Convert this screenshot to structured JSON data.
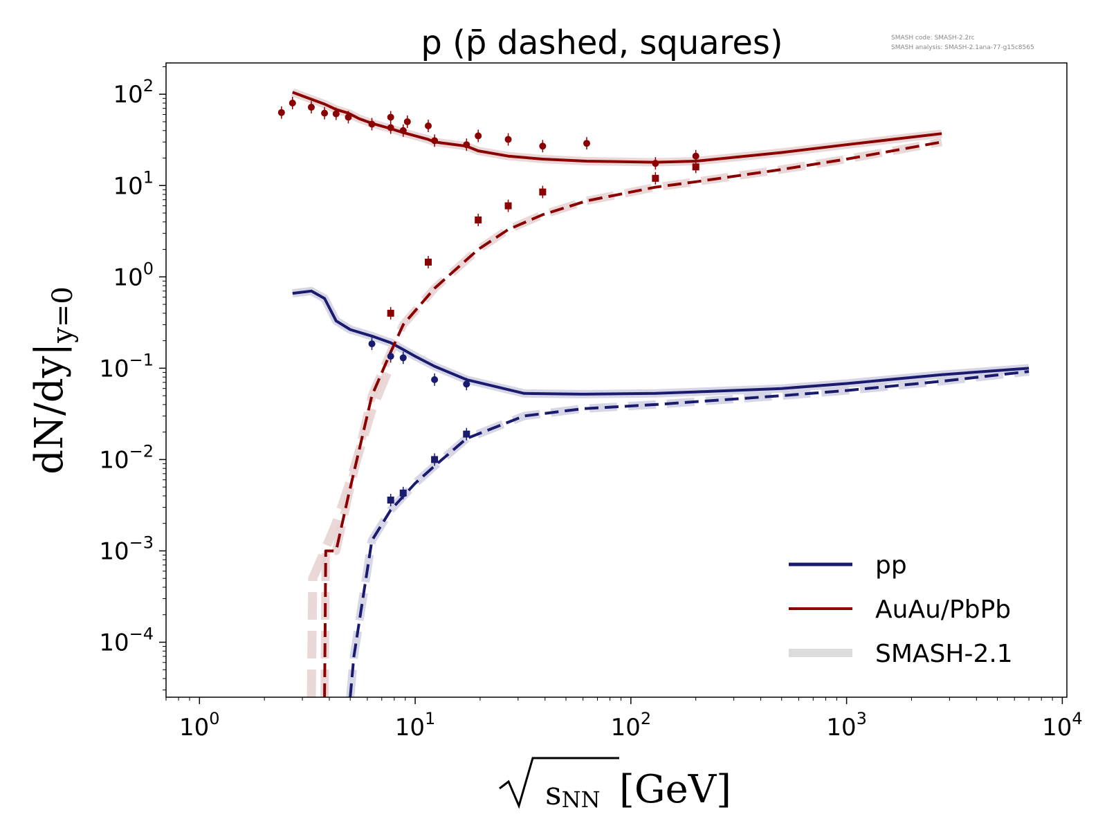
{
  "chart_data": {
    "type": "line",
    "title": "p (p̄ dashed, squares)",
    "xlabel": "√sNN [GeV]",
    "ylabel": "dN/dy|y=0",
    "x_scale": "log",
    "y_scale": "log",
    "xlim": [
      0.7,
      10500
    ],
    "ylim": [
      2.5e-05,
      220
    ],
    "x_ticks": [
      {
        "value": 1,
        "base": "10",
        "exp": "0"
      },
      {
        "value": 10,
        "base": "10",
        "exp": "1"
      },
      {
        "value": 100,
        "base": "10",
        "exp": "2"
      },
      {
        "value": 1000,
        "base": "10",
        "exp": "3"
      },
      {
        "value": 10000,
        "base": "10",
        "exp": "4"
      }
    ],
    "y_ticks": [
      {
        "value": 100,
        "base": "10",
        "exp": "2"
      },
      {
        "value": 10,
        "base": "10",
        "exp": "1"
      },
      {
        "value": 1,
        "base": "10",
        "exp": "0"
      },
      {
        "value": 0.1,
        "base": "10",
        "exp": "−1"
      },
      {
        "value": 0.01,
        "base": "10",
        "exp": "−2"
      },
      {
        "value": 0.001,
        "base": "10",
        "exp": "−3"
      },
      {
        "value": 0.0001,
        "base": "10",
        "exp": "−4"
      }
    ],
    "meta_text": [
      "SMASH code:      SMASH-2.2rc",
      "SMASH analysis: SMASH-2.1ana-77-g15c8565"
    ],
    "legend": {
      "placement": "bottom-right",
      "entries": [
        {
          "label": "pp",
          "color": "#1a1a6e",
          "style": "line"
        },
        {
          "label": "AuAu/PbPb",
          "color": "#8b0000",
          "style": "line"
        },
        {
          "label": "SMASH-2.1",
          "color": "#dcdcdc",
          "style": "band"
        }
      ]
    },
    "colors": {
      "pp": "#1a1a6e",
      "aa": "#8b0000",
      "band_aa": "#e8d4d4",
      "band_pp": "#d2d2e4"
    },
    "series": [
      {
        "name": "pp",
        "kind": "model",
        "dashed": false,
        "color": "#1a1a6e",
        "band": "#d2d2e4",
        "x": [
          2.7,
          3.3,
          3.8,
          4.3,
          5.0,
          6.3,
          7.7,
          8.8,
          10.0,
          12.3,
          17.3,
          20,
          32,
          60,
          130,
          200,
          500,
          1000,
          2760,
          7000
        ],
        "y": [
          0.66,
          0.7,
          0.58,
          0.33,
          0.265,
          0.225,
          0.19,
          0.16,
          0.135,
          0.105,
          0.075,
          0.069,
          0.053,
          0.052,
          0.053,
          0.055,
          0.06,
          0.068,
          0.085,
          0.1
        ]
      },
      {
        "name": "pbar pp",
        "kind": "model",
        "dashed": true,
        "color": "#1a1a6e",
        "band": "#d2d2e4",
        "x": [
          5.0,
          5.2,
          6.3,
          7.7,
          10,
          12.3,
          17.3,
          32,
          60,
          130,
          200,
          500,
          1000,
          2760,
          7000
        ],
        "y": [
          2.5e-05,
          7e-05,
          0.0013,
          0.0028,
          0.0055,
          0.0085,
          0.017,
          0.03,
          0.036,
          0.04,
          0.043,
          0.05,
          0.057,
          0.072,
          0.092
        ]
      },
      {
        "name": "AuAu/PbPb",
        "kind": "model",
        "dashed": false,
        "color": "#8b0000",
        "band": "#e8d4d4",
        "x": [
          2.7,
          3.3,
          3.8,
          4.3,
          4.9,
          5.5,
          6.3,
          7.7,
          8.8,
          11.5,
          12.3,
          17.3,
          19.6,
          27,
          39,
          62.4,
          130,
          200,
          500,
          1000,
          2760
        ],
        "y": [
          105,
          88,
          78,
          68,
          62,
          54,
          48,
          42,
          38,
          32,
          30,
          27,
          24,
          21,
          19.5,
          18.5,
          18,
          18.5,
          23,
          28,
          37
        ]
      },
      {
        "name": "pbar AuAu/PbPb",
        "kind": "model",
        "dashed": true,
        "color": "#8b0000",
        "band": "#e8d4d4",
        "x": [
          3.8,
          3.85,
          4.3,
          4.9,
          6.3,
          7.7,
          8.8,
          12.3,
          19.6,
          27,
          39,
          62.4,
          130,
          200,
          500,
          1000,
          2760
        ],
        "y": [
          2.5e-05,
          0.001,
          0.001,
          0.004,
          0.05,
          0.15,
          0.3,
          0.75,
          2.0,
          3.3,
          4.8,
          6.8,
          9.6,
          11,
          15,
          19.5,
          30
        ]
      },
      {
        "name": "pbar AuAu/PbPb band",
        "kind": "band_only",
        "dashed": true,
        "color": "#e8d4d4",
        "x": [
          3.3,
          3.35,
          3.8,
          4.3,
          4.9,
          6.3,
          7.7
        ],
        "y": [
          2.5e-05,
          0.0005,
          0.001,
          0.002,
          0.005,
          0.035,
          0.11
        ]
      },
      {
        "name": "pp data",
        "kind": "points",
        "marker": "circle",
        "color": "#1a1a6e",
        "x": [
          6.3,
          7.7,
          8.8,
          12.3,
          17.3
        ],
        "y": [
          0.185,
          0.135,
          0.13,
          0.075,
          0.067
        ]
      },
      {
        "name": "pbar pp data",
        "kind": "points",
        "marker": "square",
        "color": "#1a1a6e",
        "x": [
          7.7,
          8.8,
          12.3,
          17.3
        ],
        "y": [
          0.0036,
          0.0043,
          0.01,
          0.019
        ]
      },
      {
        "name": "AuAu/PbPb data",
        "kind": "points",
        "marker": "circle",
        "color": "#8b0000",
        "x": [
          2.4,
          2.7,
          3.3,
          3.8,
          4.3,
          4.9,
          6.3,
          7.7,
          7.7,
          8.8,
          9.2,
          11.5,
          12.3,
          17.3,
          19.6,
          27,
          39,
          62.4,
          130,
          200
        ],
        "y": [
          63,
          80,
          72,
          62,
          61,
          56,
          47,
          43,
          56,
          40,
          50,
          45,
          31,
          28,
          35,
          32,
          27,
          29,
          17.5,
          21
        ]
      },
      {
        "name": "pbar AuAu/PbPb data",
        "kind": "points",
        "marker": "square",
        "color": "#8b0000",
        "x": [
          7.7,
          11.5,
          19.6,
          27,
          39,
          130,
          200
        ],
        "y": [
          0.4,
          1.45,
          4.2,
          6.0,
          8.5,
          12,
          16
        ]
      }
    ]
  }
}
